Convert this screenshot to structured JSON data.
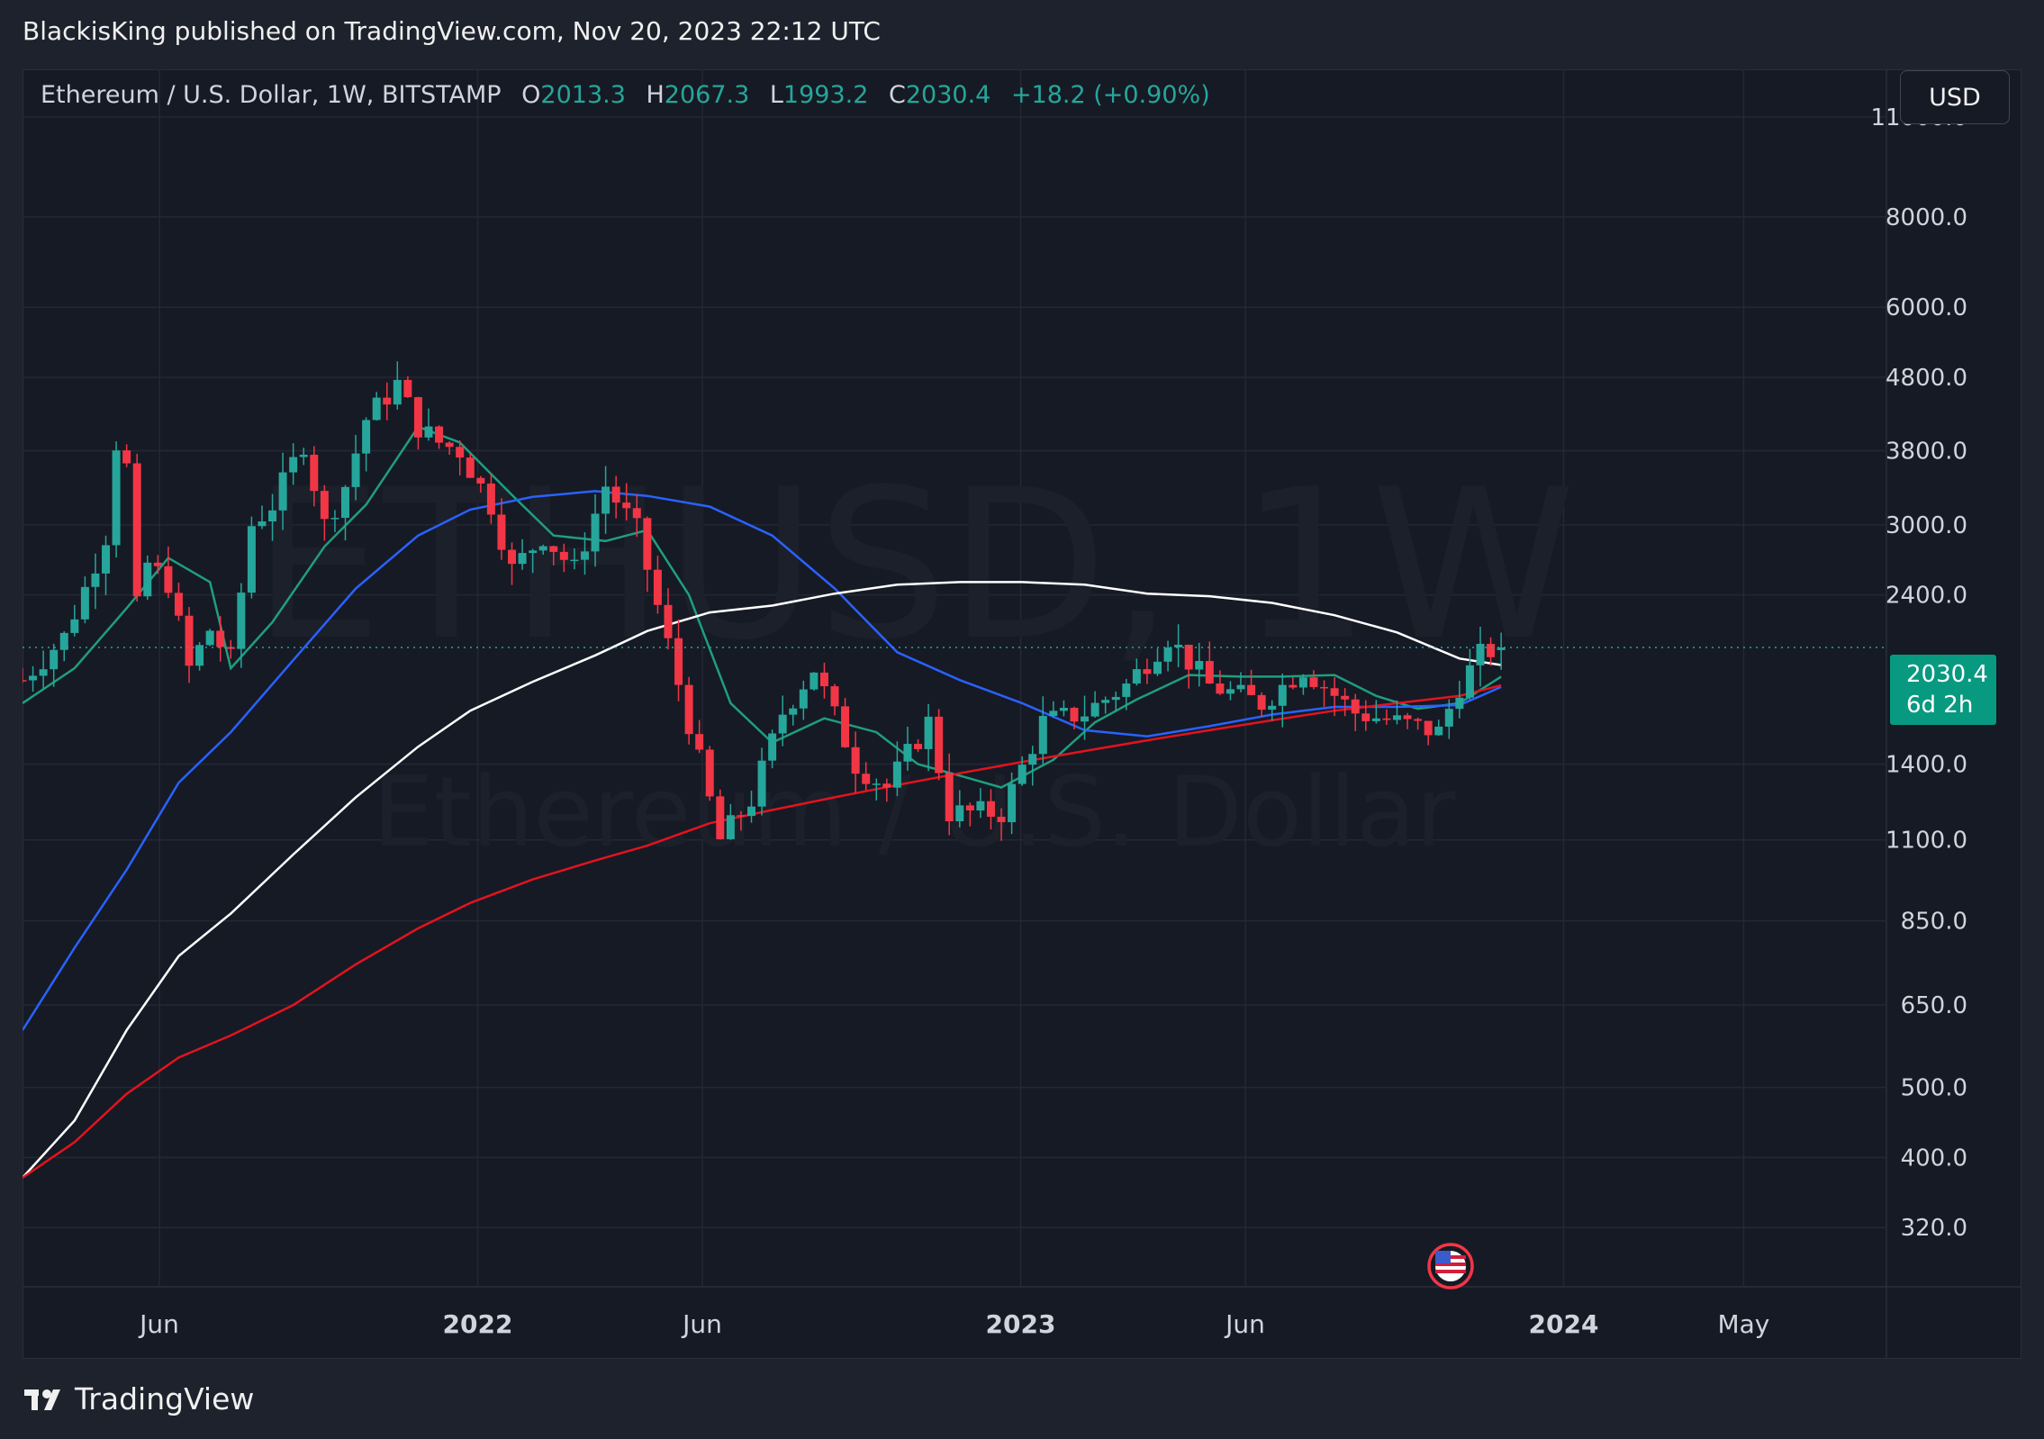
{
  "header": {
    "published_by": "BlackisKing published on TradingView.com, Nov 20, 2023 22:12 UTC"
  },
  "footer": {
    "brand": "TradingView"
  },
  "legend": {
    "symbol": "Ethereum / U.S. Dollar, 1W, BITSTAMP",
    "o_label": "O",
    "o_value": "2013.3",
    "h_label": "H",
    "h_value": "2067.3",
    "l_label": "L",
    "l_value": "1993.2",
    "c_label": "C",
    "c_value": "2030.4",
    "change": "+18.2 (+0.90%)"
  },
  "currency_button": "USD",
  "price_tag": {
    "price": "2030.4",
    "countdown": "6d 2h"
  },
  "watermark": {
    "line1": "ETHUSD, 1W",
    "line2": "Ethereum / U.S. Dollar"
  },
  "colors": {
    "up": "#26a69a",
    "down": "#f23645",
    "ma_green": "#1f9e7e",
    "ma_blue": "#2962ff",
    "ma_white": "#ffffff",
    "ma_red": "#e3131e"
  },
  "chart_data": {
    "type": "candlestick",
    "scale": "log",
    "x_range": [
      "2021-03-01",
      "2024-08-05"
    ],
    "y_range": [
      265,
      12800
    ],
    "x_ticks": [
      {
        "label": "Jun",
        "date": "2021-06-01"
      },
      {
        "label": "2022",
        "date": "2022-01-01"
      },
      {
        "label": "Jun",
        "date": "2022-06-01"
      },
      {
        "label": "2023",
        "date": "2023-01-01"
      },
      {
        "label": "Jun",
        "date": "2023-06-01"
      },
      {
        "label": "2024",
        "date": "2024-01-01"
      },
      {
        "label": "May",
        "date": "2024-05-01"
      }
    ],
    "y_ticks": [
      11000,
      8000,
      6000,
      4800,
      3800,
      3000,
      2400,
      1400,
      1100,
      850,
      650,
      500,
      400,
      320
    ],
    "y_tick_labels": [
      "11000.0",
      "8000.0",
      "6000.0",
      "4800.0",
      "3800.0",
      "3000.0",
      "2400.0",
      "1400.0",
      "1100.0",
      "850.0",
      "650.0",
      "500.0",
      "400.0",
      "320.0"
    ],
    "last_price": 2030.4,
    "closes": [
      {
        "date": "2021-03-01",
        "close": 1830
      },
      {
        "date": "2021-03-29",
        "close": 2100
      },
      {
        "date": "2021-04-12",
        "close": 2450
      },
      {
        "date": "2021-04-26",
        "close": 2900
      },
      {
        "date": "2021-05-03",
        "close": 3900
      },
      {
        "date": "2021-05-10",
        "close": 3600
      },
      {
        "date": "2021-05-17",
        "close": 2300
      },
      {
        "date": "2021-05-24",
        "close": 2650
      },
      {
        "date": "2021-06-07",
        "close": 2500
      },
      {
        "date": "2021-06-21",
        "close": 1900
      },
      {
        "date": "2021-07-05",
        "close": 2150
      },
      {
        "date": "2021-07-19",
        "close": 1950
      },
      {
        "date": "2021-08-02",
        "close": 3000
      },
      {
        "date": "2021-08-16",
        "close": 3200
      },
      {
        "date": "2021-09-06",
        "close": 3900
      },
      {
        "date": "2021-09-20",
        "close": 3000
      },
      {
        "date": "2021-10-04",
        "close": 3400
      },
      {
        "date": "2021-10-18",
        "close": 4200
      },
      {
        "date": "2021-11-08",
        "close": 4700
      },
      {
        "date": "2021-11-22",
        "close": 4100
      },
      {
        "date": "2021-12-06",
        "close": 3900
      },
      {
        "date": "2021-12-20",
        "close": 3800
      },
      {
        "date": "2022-01-10",
        "close": 3200
      },
      {
        "date": "2022-01-24",
        "close": 2600
      },
      {
        "date": "2022-02-14",
        "close": 2900
      },
      {
        "date": "2022-03-07",
        "close": 2600
      },
      {
        "date": "2022-03-28",
        "close": 3400
      },
      {
        "date": "2022-04-18",
        "close": 2950
      },
      {
        "date": "2022-05-09",
        "close": 2050
      },
      {
        "date": "2022-06-13",
        "close": 1100
      },
      {
        "date": "2022-07-04",
        "close": 1250
      },
      {
        "date": "2022-07-25",
        "close": 1650
      },
      {
        "date": "2022-08-15",
        "close": 1900
      },
      {
        "date": "2022-09-12",
        "close": 1400
      },
      {
        "date": "2022-10-03",
        "close": 1300
      },
      {
        "date": "2022-10-31",
        "close": 1600
      },
      {
        "date": "2022-11-14",
        "close": 1200
      },
      {
        "date": "2022-12-19",
        "close": 1200
      },
      {
        "date": "2023-01-16",
        "close": 1600
      },
      {
        "date": "2023-02-13",
        "close": 1650
      },
      {
        "date": "2023-03-13",
        "close": 1800
      },
      {
        "date": "2023-04-10",
        "close": 2100
      },
      {
        "date": "2023-05-08",
        "close": 1800
      },
      {
        "date": "2023-06-12",
        "close": 1700
      },
      {
        "date": "2023-07-10",
        "close": 1900
      },
      {
        "date": "2023-08-14",
        "close": 1650
      },
      {
        "date": "2023-09-11",
        "close": 1600
      },
      {
        "date": "2023-10-09",
        "close": 1550
      },
      {
        "date": "2023-10-23",
        "close": 1800
      },
      {
        "date": "2023-11-06",
        "close": 1980
      },
      {
        "date": "2023-11-13",
        "close": 2012
      },
      {
        "date": "2023-11-20",
        "close": 2030.4
      }
    ],
    "moving_averages": [
      {
        "color": "green",
        "points": [
          [
            "2021-03-01",
            1700
          ],
          [
            "2021-04-05",
            1900
          ],
          [
            "2021-05-10",
            2300
          ],
          [
            "2021-06-07",
            2700
          ],
          [
            "2021-07-05",
            2500
          ],
          [
            "2021-07-19",
            1900
          ],
          [
            "2021-08-16",
            2200
          ],
          [
            "2021-09-20",
            2800
          ],
          [
            "2021-10-18",
            3200
          ],
          [
            "2021-11-22",
            4100
          ],
          [
            "2021-12-20",
            3900
          ],
          [
            "2022-01-24",
            3300
          ],
          [
            "2022-02-21",
            2900
          ],
          [
            "2022-03-28",
            2850
          ],
          [
            "2022-04-25",
            2950
          ],
          [
            "2022-05-23",
            2400
          ],
          [
            "2022-06-20",
            1700
          ],
          [
            "2022-07-18",
            1500
          ],
          [
            "2022-08-22",
            1620
          ],
          [
            "2022-09-26",
            1550
          ],
          [
            "2022-10-24",
            1400
          ],
          [
            "2022-11-21",
            1350
          ],
          [
            "2022-12-19",
            1300
          ],
          [
            "2023-01-23",
            1420
          ],
          [
            "2023-02-20",
            1600
          ],
          [
            "2023-03-20",
            1720
          ],
          [
            "2023-04-24",
            1860
          ],
          [
            "2023-05-29",
            1850
          ],
          [
            "2023-06-26",
            1850
          ],
          [
            "2023-07-31",
            1860
          ],
          [
            "2023-08-28",
            1740
          ],
          [
            "2023-09-25",
            1670
          ],
          [
            "2023-10-23",
            1700
          ],
          [
            "2023-11-20",
            1850
          ]
        ]
      },
      {
        "color": "blue",
        "points": [
          [
            "2021-03-01",
            600
          ],
          [
            "2021-04-05",
            780
          ],
          [
            "2021-05-10",
            1000
          ],
          [
            "2021-06-14",
            1320
          ],
          [
            "2021-07-19",
            1550
          ],
          [
            "2021-08-30",
            1950
          ],
          [
            "2021-10-11",
            2450
          ],
          [
            "2021-11-22",
            2900
          ],
          [
            "2021-12-27",
            3150
          ],
          [
            "2022-02-07",
            3280
          ],
          [
            "2022-03-21",
            3340
          ],
          [
            "2022-04-25",
            3290
          ],
          [
            "2022-06-06",
            3180
          ],
          [
            "2022-07-18",
            2900
          ],
          [
            "2022-08-29",
            2450
          ],
          [
            "2022-10-10",
            2000
          ],
          [
            "2022-11-21",
            1830
          ],
          [
            "2023-01-02",
            1700
          ],
          [
            "2023-02-13",
            1560
          ],
          [
            "2023-03-27",
            1530
          ],
          [
            "2023-05-08",
            1580
          ],
          [
            "2023-06-19",
            1640
          ],
          [
            "2023-07-31",
            1680
          ],
          [
            "2023-09-11",
            1680
          ],
          [
            "2023-10-23",
            1690
          ],
          [
            "2023-11-20",
            1790
          ]
        ]
      },
      {
        "color": "white",
        "points": [
          [
            "2021-03-01",
            375
          ],
          [
            "2021-04-05",
            450
          ],
          [
            "2021-05-10",
            600
          ],
          [
            "2021-06-14",
            760
          ],
          [
            "2021-07-19",
            870
          ],
          [
            "2021-08-30",
            1050
          ],
          [
            "2021-10-11",
            1260
          ],
          [
            "2021-11-22",
            1480
          ],
          [
            "2021-12-27",
            1660
          ],
          [
            "2022-02-07",
            1820
          ],
          [
            "2022-03-21",
            1980
          ],
          [
            "2022-04-25",
            2140
          ],
          [
            "2022-06-06",
            2270
          ],
          [
            "2022-07-18",
            2320
          ],
          [
            "2022-08-29",
            2410
          ],
          [
            "2022-10-10",
            2480
          ],
          [
            "2022-11-21",
            2500
          ],
          [
            "2023-01-02",
            2500
          ],
          [
            "2023-02-13",
            2480
          ],
          [
            "2023-03-27",
            2410
          ],
          [
            "2023-05-08",
            2390
          ],
          [
            "2023-06-19",
            2340
          ],
          [
            "2023-07-31",
            2250
          ],
          [
            "2023-09-11",
            2130
          ],
          [
            "2023-10-23",
            1960
          ],
          [
            "2023-11-20",
            1920
          ]
        ]
      },
      {
        "color": "red",
        "points": [
          [
            "2021-03-01",
            375
          ],
          [
            "2021-04-05",
            420
          ],
          [
            "2021-05-10",
            490
          ],
          [
            "2021-06-14",
            550
          ],
          [
            "2021-07-19",
            590
          ],
          [
            "2021-08-30",
            650
          ],
          [
            "2021-10-11",
            740
          ],
          [
            "2021-11-22",
            830
          ],
          [
            "2021-12-27",
            900
          ],
          [
            "2022-02-07",
            970
          ],
          [
            "2022-03-21",
            1030
          ],
          [
            "2022-04-25",
            1080
          ],
          [
            "2022-06-06",
            1160
          ],
          [
            "2022-07-18",
            1210
          ],
          [
            "2022-08-29",
            1260
          ],
          [
            "2022-10-10",
            1310
          ],
          [
            "2022-11-21",
            1360
          ],
          [
            "2023-01-02",
            1410
          ],
          [
            "2023-02-13",
            1460
          ],
          [
            "2023-03-27",
            1510
          ],
          [
            "2023-05-08",
            1560
          ],
          [
            "2023-06-19",
            1610
          ],
          [
            "2023-07-31",
            1660
          ],
          [
            "2023-09-11",
            1700
          ],
          [
            "2023-10-23",
            1740
          ],
          [
            "2023-11-20",
            1800
          ]
        ]
      }
    ]
  }
}
